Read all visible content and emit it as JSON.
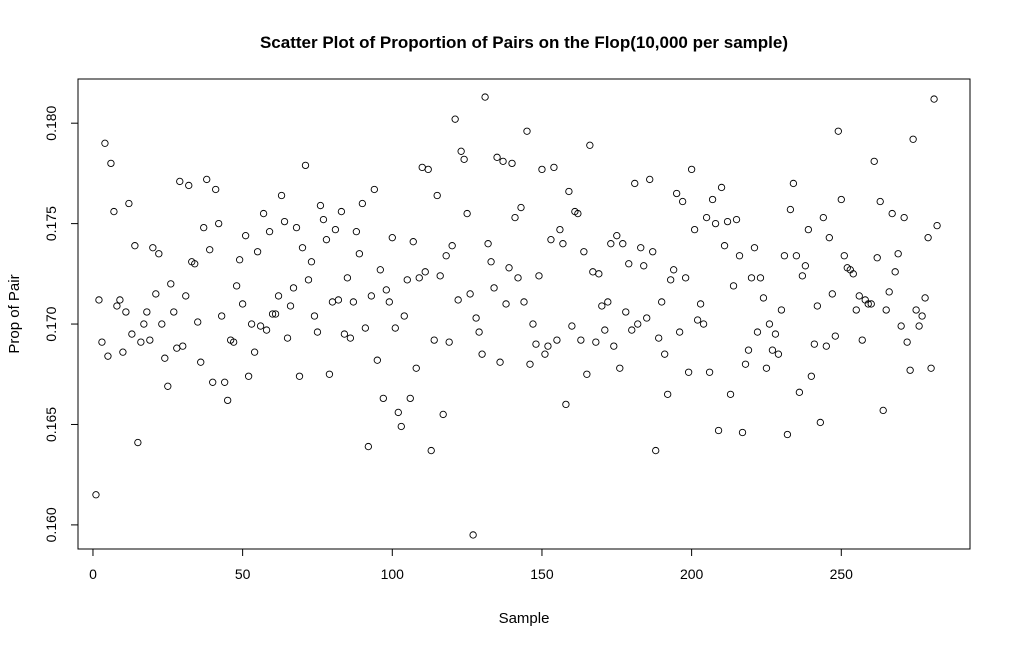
{
  "chart_data": {
    "type": "scatter",
    "title": "Scatter Plot of Proportion of Pairs on the Flop(10,000 per sample)",
    "xlabel": "Sample",
    "ylabel": "Prop of Pair",
    "xlim": [
      -5,
      293
    ],
    "ylim": [
      0.1588,
      0.1822
    ],
    "x_ticks": [
      0,
      50,
      100,
      150,
      200,
      250
    ],
    "x_tick_labels": [
      "0",
      "50",
      "100",
      "150",
      "200",
      "250"
    ],
    "y_ticks": [
      0.16,
      0.165,
      0.17,
      0.175,
      0.18
    ],
    "y_tick_labels": [
      "0.160",
      "0.165",
      "0.170",
      "0.175",
      "0.180"
    ],
    "grid": false,
    "marker": "open-circle",
    "color": "#000000",
    "series": [
      {
        "x": [
          1,
          2,
          3,
          4,
          5,
          6,
          7,
          8,
          9,
          10,
          11,
          12,
          13,
          14,
          15,
          16,
          17,
          18,
          19,
          20,
          21,
          22,
          23,
          24,
          25,
          26,
          27,
          28,
          29,
          30,
          31,
          32,
          33,
          34,
          35,
          36,
          37,
          38,
          39,
          40,
          41,
          42,
          43,
          44,
          45,
          46,
          47,
          48,
          49,
          50,
          51,
          52,
          53,
          54,
          55,
          56,
          57,
          58,
          59,
          60,
          61,
          62,
          63,
          64,
          65,
          66,
          67,
          68,
          69,
          70,
          71,
          72,
          73,
          74,
          75,
          76,
          77,
          78,
          79,
          80,
          81,
          82,
          83,
          84,
          85,
          86,
          87,
          88,
          89,
          90,
          91,
          92,
          93,
          94,
          95,
          96,
          97,
          98,
          99,
          100,
          101,
          102,
          103,
          104,
          105,
          106,
          107,
          108,
          109,
          110,
          111,
          112,
          113,
          114,
          115,
          116,
          117,
          118,
          119,
          120,
          121,
          122,
          123,
          124,
          125,
          126,
          127,
          128,
          129,
          130,
          131,
          132,
          133,
          134,
          135,
          136,
          137,
          138,
          139,
          140,
          141,
          142,
          143,
          144,
          145,
          146,
          147,
          148,
          149,
          150,
          151,
          152,
          153,
          154,
          155,
          156,
          157,
          158,
          159,
          160,
          161,
          162,
          163,
          164,
          165,
          166,
          167,
          168,
          169,
          170,
          171,
          172,
          173,
          174,
          175,
          176,
          177,
          178,
          179,
          180,
          181,
          182,
          183,
          184,
          185,
          186,
          187,
          188,
          189,
          190,
          191,
          192,
          193,
          194,
          195,
          196,
          197,
          198,
          199,
          200,
          201,
          202,
          203,
          204,
          205,
          206,
          207,
          208,
          209,
          210,
          211,
          212,
          213,
          214,
          215,
          216,
          217,
          218,
          219,
          220,
          221,
          222,
          223,
          224,
          225,
          226,
          227,
          228,
          229,
          230,
          231,
          232,
          233,
          234,
          235,
          236,
          237,
          238,
          239,
          240,
          241,
          242,
          243,
          244,
          245,
          246,
          247,
          248,
          249,
          250,
          251,
          252,
          253,
          254,
          255,
          256,
          257,
          258,
          259,
          260,
          261,
          262,
          263,
          264,
          265,
          266,
          267,
          268,
          269,
          270,
          271,
          272,
          273,
          274,
          275,
          276,
          277,
          278,
          279,
          280,
          281,
          282
        ],
        "y": [
          0.1615,
          0.1712,
          0.1691,
          0.179,
          0.1684,
          0.178,
          0.1756,
          0.1709,
          0.1712,
          0.1686,
          0.1706,
          0.176,
          0.1695,
          0.1739,
          0.1641,
          0.1691,
          0.17,
          0.1706,
          0.1692,
          0.1738,
          0.1715,
          0.1735,
          0.17,
          0.1683,
          0.1669,
          0.172,
          0.1706,
          0.1688,
          0.1771,
          0.1689,
          0.1714,
          0.1769,
          0.1731,
          0.173,
          0.1701,
          0.1681,
          0.1748,
          0.1772,
          0.1737,
          0.1671,
          0.1767,
          0.175,
          0.1704,
          0.1671,
          0.1662,
          0.1692,
          0.1691,
          0.1719,
          0.1732,
          0.171,
          0.1744,
          0.1674,
          0.17,
          0.1686,
          0.1736,
          0.1699,
          0.1755,
          0.1697,
          0.1746,
          0.1705,
          0.1705,
          0.1714,
          0.1764,
          0.1751,
          0.1693,
          0.1709,
          0.1718,
          0.1748,
          0.1674,
          0.1738,
          0.1779,
          0.1722,
          0.1731,
          0.1704,
          0.1696,
          0.1759,
          0.1752,
          0.1742,
          0.1675,
          0.1711,
          0.1747,
          0.1712,
          0.1756,
          0.1695,
          0.1723,
          0.1693,
          0.1711,
          0.1746,
          0.1735,
          0.176,
          0.1698,
          0.1639,
          0.1714,
          0.1767,
          0.1682,
          0.1727,
          0.1663,
          0.1717,
          0.1711,
          0.1743,
          0.1698,
          0.1656,
          0.1649,
          0.1704,
          0.1722,
          0.1663,
          0.1741,
          0.1678,
          0.1723,
          0.1778,
          0.1726,
          0.1777,
          0.1637,
          0.1692,
          0.1764,
          0.1724,
          0.1655,
          0.1734,
          0.1691,
          0.1739,
          0.1802,
          0.1712,
          0.1786,
          0.1782,
          0.1755,
          0.1715,
          0.1595,
          0.1703,
          0.1696,
          0.1685,
          0.1813,
          0.174,
          0.1731,
          0.1718,
          0.1783,
          0.1681,
          0.1781,
          0.171,
          0.1728,
          0.178,
          0.1753,
          0.1723,
          0.1758,
          0.1711,
          0.1796,
          0.168,
          0.17,
          0.169,
          0.1724,
          0.1777,
          0.1685,
          0.1689,
          0.1742,
          0.1778,
          0.1692,
          0.1747,
          0.174,
          0.166,
          0.1766,
          0.1699,
          0.1756,
          0.1755,
          0.1692,
          0.1736,
          0.1675,
          0.1789,
          0.1726,
          0.1691,
          0.1725,
          0.1709,
          0.1697,
          0.1711,
          0.174,
          0.1689,
          0.1744,
          0.1678,
          0.174,
          0.1706,
          0.173,
          0.1697,
          0.177,
          0.17,
          0.1738,
          0.1729,
          0.1703,
          0.1772,
          0.1736,
          0.1637,
          0.1693,
          0.1711,
          0.1685,
          0.1665,
          0.1722,
          0.1727,
          0.1765,
          0.1696,
          0.1761,
          0.1723,
          0.1676,
          0.1777,
          0.1747,
          0.1702,
          0.171,
          0.17,
          0.1753,
          0.1676,
          0.1762,
          0.175,
          0.1647,
          0.1768,
          0.1739,
          0.1751,
          0.1665,
          0.1719,
          0.1752,
          0.1734,
          0.1646,
          0.168,
          0.1687,
          0.1723,
          0.1738,
          0.1696,
          0.1723,
          0.1713,
          0.1678,
          0.17,
          0.1687,
          0.1695,
          0.1685,
          0.1707,
          0.1734,
          0.1645,
          0.1757,
          0.177,
          0.1734,
          0.1666,
          0.1724,
          0.1729,
          0.1747,
          0.1674,
          0.169,
          0.1709,
          0.1651,
          0.1753,
          0.1689,
          0.1743,
          0.1715,
          0.1694,
          0.1796,
          0.1762,
          0.1734,
          0.1728,
          0.1727,
          0.1725,
          0.1707,
          0.1714,
          0.1692,
          0.1712,
          0.171,
          0.171,
          0.1781,
          0.1733,
          0.1761,
          0.1657,
          0.1707,
          0.1716,
          0.1755,
          0.1726,
          0.1735,
          0.1699,
          0.1753,
          0.1691,
          0.1677,
          0.1792,
          0.1707,
          0.1699,
          0.1704,
          0.1713,
          0.1743,
          0.1678,
          0.1812,
          0.1749
        ]
      }
    ]
  }
}
